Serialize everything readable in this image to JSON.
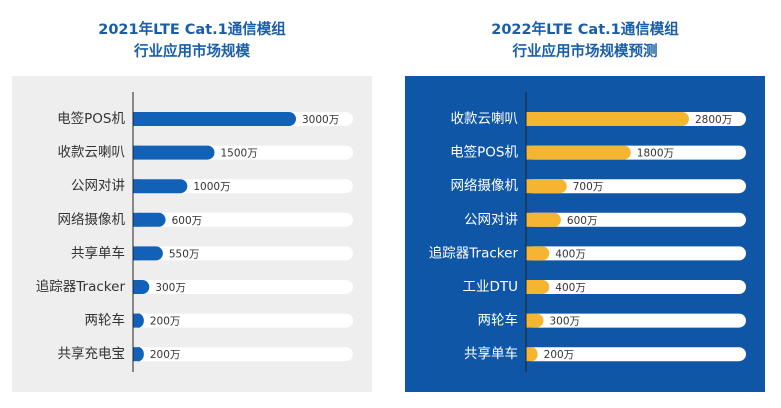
{
  "chart_data": [
    {
      "type": "hbar",
      "title": [
        "2021年LTE Cat.1通信模组",
        "行业应用市场规模"
      ],
      "categories": [
        "电签POS机",
        "收款云喇叭",
        "公网对讲",
        "网络摄像机",
        "共享单车",
        "追踪器Tracker",
        "两轮车",
        "共享充电宝"
      ],
      "values": [
        3000,
        1500,
        1000,
        600,
        550,
        300,
        200,
        200
      ],
      "value_labels": [
        "3000万",
        "1500万",
        "1000万",
        "600万",
        "550万",
        "300万",
        "200万",
        "200万"
      ],
      "color": "#1161b9",
      "background": "#eeeeee"
    },
    {
      "type": "hbar",
      "title": [
        "2022年LTE Cat.1通信模组",
        "行业应用市场规模预测"
      ],
      "categories": [
        "收款云喇叭",
        "电签POS机",
        "网络摄像机",
        "公网对讲",
        "追踪器Tracker",
        "工业DTU",
        "两轮车",
        "共享单车"
      ],
      "values": [
        2800,
        1800,
        700,
        600,
        400,
        400,
        300,
        200
      ],
      "value_labels": [
        "2800万",
        "1800万",
        "700万",
        "600万",
        "400万",
        "400万",
        "300万",
        "200万"
      ],
      "color": "#f6b530",
      "background": "#0f56a6"
    }
  ]
}
